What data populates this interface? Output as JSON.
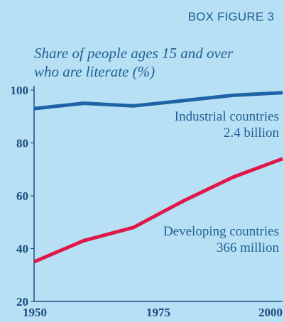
{
  "figure_label": "BOX FIGURE 3",
  "chart_data": {
    "type": "line",
    "title": "",
    "subtitle": [
      "Share of people ages 15 and over",
      "who are literate (%)"
    ],
    "xlabel": "",
    "ylabel": "",
    "xlim": [
      1950,
      2000
    ],
    "ylim": [
      20,
      100
    ],
    "x_ticks": [
      1950,
      1975,
      2000
    ],
    "y_ticks": [
      20,
      40,
      60,
      80,
      100
    ],
    "grid": false,
    "series": [
      {
        "label_lines": [
          "Industrial countries",
          "2.4 billion"
        ],
        "color": "#1f63a6",
        "x": [
          1950,
          1960,
          1970,
          1980,
          1990,
          2000
        ],
        "y": [
          93,
          95,
          94,
          96,
          98,
          99
        ]
      },
      {
        "label_lines": [
          "Developing countries",
          "366 million"
        ],
        "color": "#e0184a",
        "x": [
          1950,
          1960,
          1970,
          1980,
          1990,
          2000
        ],
        "y": [
          35,
          43,
          48,
          58,
          67,
          74
        ]
      }
    ]
  }
}
